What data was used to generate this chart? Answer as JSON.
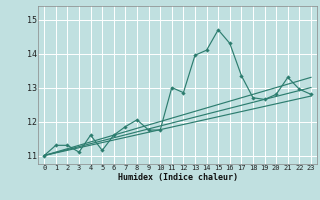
{
  "xlabel": "Humidex (Indice chaleur)",
  "bg_color": "#c0e0e0",
  "grid_color": "#ffffff",
  "line_color": "#2d7d6f",
  "xlim": [
    -0.5,
    23.5
  ],
  "ylim": [
    10.75,
    15.4
  ],
  "yticks": [
    11,
    12,
    13,
    14,
    15
  ],
  "xticks": [
    0,
    1,
    2,
    3,
    4,
    5,
    6,
    7,
    8,
    9,
    10,
    11,
    12,
    13,
    14,
    15,
    16,
    17,
    18,
    19,
    20,
    21,
    22,
    23
  ],
  "series_x": [
    0,
    1,
    2,
    3,
    4,
    5,
    6,
    7,
    8,
    9,
    10,
    11,
    12,
    13,
    14,
    15,
    16,
    17,
    18,
    19,
    20,
    21,
    22,
    23
  ],
  "series_y": [
    11.0,
    11.3,
    11.3,
    11.1,
    11.6,
    11.15,
    11.6,
    11.85,
    12.05,
    11.75,
    11.75,
    13.0,
    12.85,
    13.95,
    14.1,
    14.7,
    14.3,
    13.35,
    12.7,
    12.65,
    12.8,
    13.3,
    12.95,
    12.8
  ],
  "trend_lines": [
    [
      [
        0,
        23
      ],
      [
        11.0,
        12.75
      ]
    ],
    [
      [
        0,
        23
      ],
      [
        11.0,
        13.0
      ]
    ],
    [
      [
        0,
        23
      ],
      [
        11.0,
        13.3
      ]
    ]
  ]
}
